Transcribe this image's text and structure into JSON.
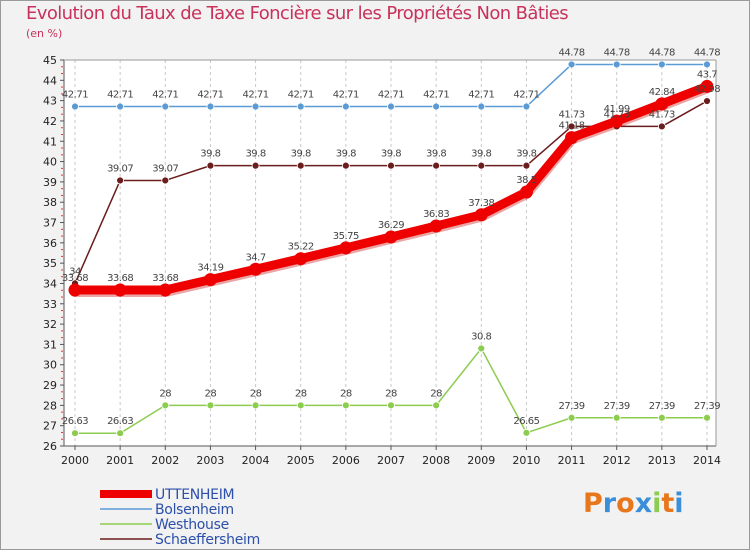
{
  "chart_data": {
    "type": "line",
    "title": "Evolution du Taux de Taxe Foncière sur les Propriétés Non Bâties",
    "ylabel": "(en %)",
    "xlabel": "",
    "ylim": [
      26,
      45
    ],
    "y_ticks": [
      26,
      27,
      28,
      29,
      30,
      31,
      32,
      33,
      34,
      35,
      36,
      37,
      38,
      39,
      40,
      41,
      42,
      43,
      44,
      45
    ],
    "x": [
      "2000",
      "2001",
      "2002",
      "2003",
      "2004",
      "2005",
      "2006",
      "2007",
      "2008",
      "2009",
      "2010",
      "2011",
      "2012",
      "2013",
      "2014"
    ],
    "grid": "vertical",
    "series": [
      {
        "name": "Bolsenheim",
        "color": "#5b9bd5",
        "values": [
          42.71,
          42.71,
          42.71,
          42.71,
          42.71,
          42.71,
          42.71,
          42.71,
          42.71,
          42.71,
          42.71,
          44.78,
          44.78,
          44.78,
          44.78
        ],
        "labels": [
          "42.71",
          "42.71",
          "42.71",
          "42.71",
          "42.71",
          "42.71",
          "42.71",
          "42.71",
          "42.71",
          "42.71",
          "42.71",
          "44.78",
          "44.78",
          "44.78",
          "44.78"
        ]
      },
      {
        "name": "Westhouse",
        "color": "#8ccc4f",
        "values": [
          26.63,
          26.63,
          28,
          28,
          28,
          28,
          28,
          28,
          28,
          30.8,
          26.65,
          27.39,
          27.39,
          27.39,
          27.39
        ],
        "labels": [
          "26.63",
          "26.63",
          "28",
          "28",
          "28",
          "28",
          "28",
          "28",
          "28",
          "30.8",
          "26.65",
          "27.39",
          "27.39",
          "27.39",
          "27.39"
        ]
      },
      {
        "name": "Schaeffersheim",
        "color": "#6b1c1c",
        "values": [
          34,
          39.07,
          39.07,
          39.8,
          39.8,
          39.8,
          39.8,
          39.8,
          39.8,
          39.8,
          39.8,
          41.73,
          41.73,
          41.73,
          42.98
        ],
        "labels": [
          "34",
          "39.07",
          "39.07",
          "39.8",
          "39.8",
          "39.8",
          "39.8",
          "39.8",
          "39.8",
          "39.8",
          "39.8",
          "41.73",
          "41.73",
          "41.73",
          "42.98"
        ]
      },
      {
        "name": "UTTENHEIM",
        "color": "#ee0000",
        "values": [
          33.68,
          33.68,
          33.68,
          34.19,
          34.7,
          35.22,
          35.75,
          36.29,
          36.83,
          37.38,
          38.5,
          41.18,
          41.99,
          42.84,
          43.7
        ],
        "labels": [
          "33.68",
          "33.68",
          "33.68",
          "34.19",
          "34.7",
          "35.22",
          "35.75",
          "36.29",
          "36.83",
          "37.38",
          "38.5",
          "41.18",
          "41.99",
          "42.84",
          "43.7"
        ]
      }
    ],
    "legend": {
      "position": "bottom-left",
      "entries": [
        "UTTENHEIM",
        "Bolsenheim",
        "Westhouse",
        "Schaeffersheim"
      ]
    }
  },
  "logo": {
    "letters": [
      "P",
      "r",
      "o",
      "x",
      "i",
      "t",
      "i"
    ],
    "colors": [
      "#e8771b",
      "#3a8fd8",
      "#e8771b",
      "#3a8fd8",
      "#8ccc4f",
      "#e8771b",
      "#3a8fd8"
    ]
  }
}
